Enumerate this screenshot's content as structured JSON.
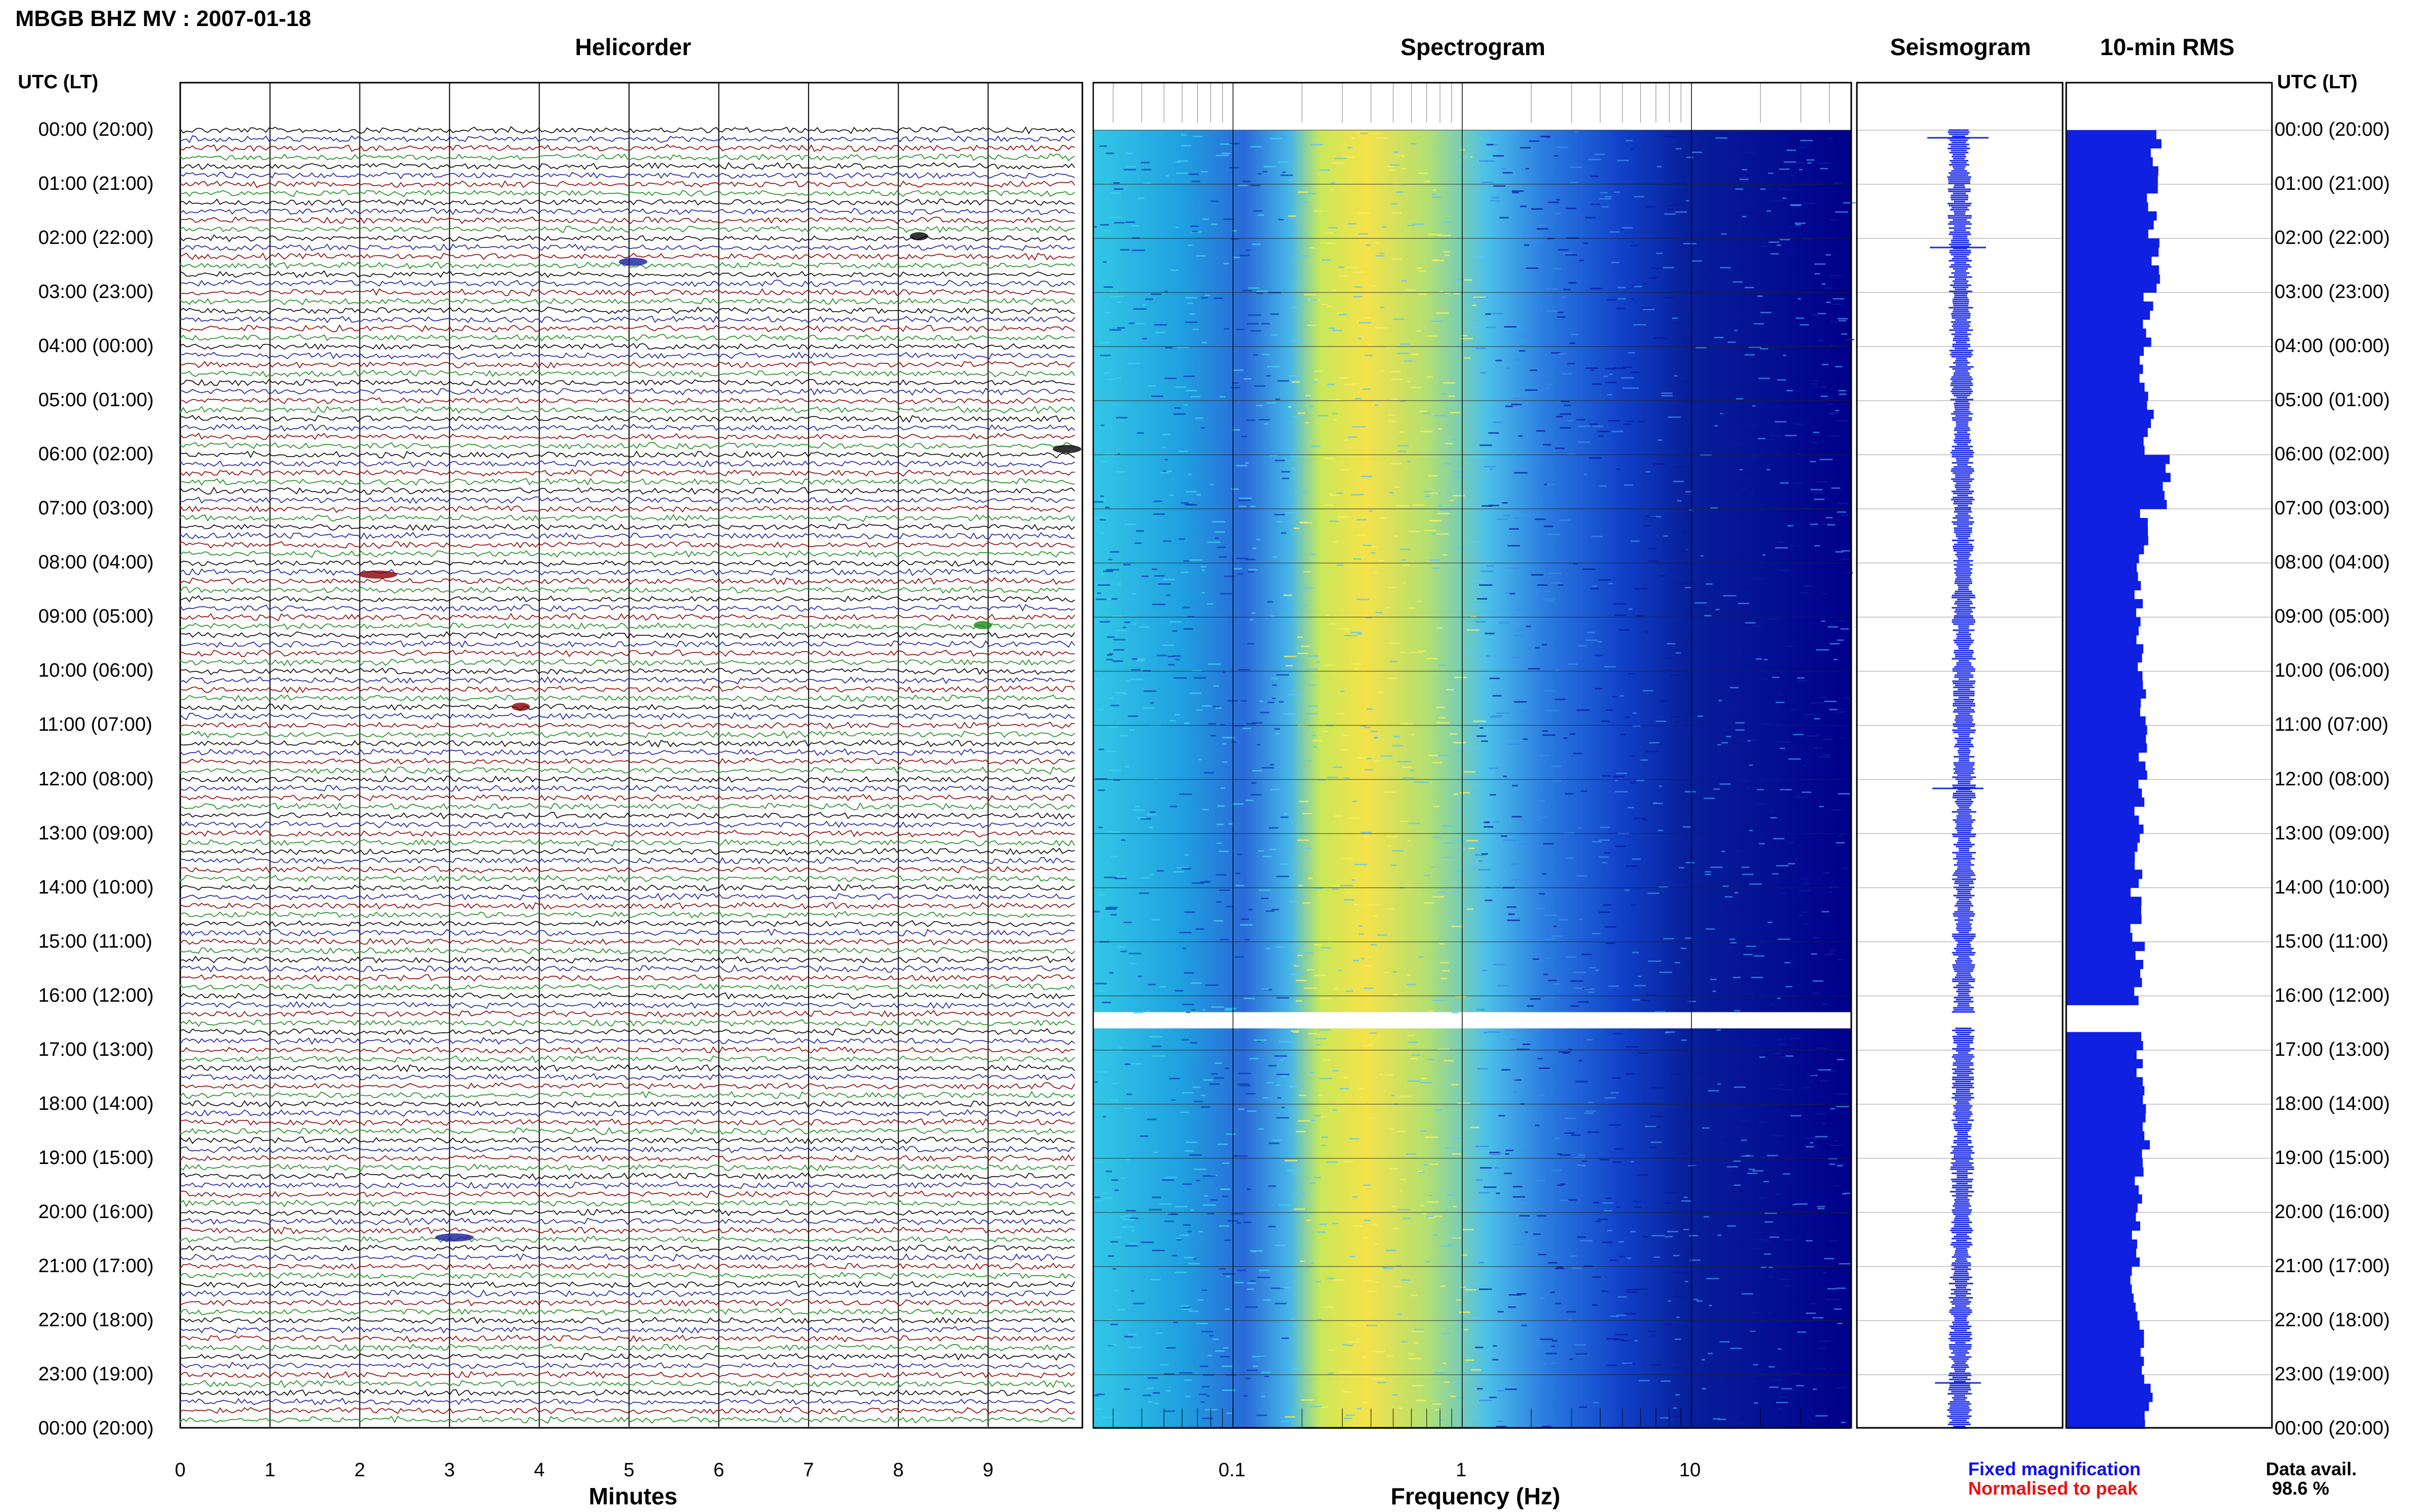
{
  "title": "MBGB BHZ MV : 2007-01-18",
  "panels": {
    "helicorder": "Helicorder",
    "spectrogram": "Spectrogram",
    "seismogram": "Seismogram",
    "rms": "10-min RMS"
  },
  "utc_header": "UTC (LT)",
  "time_labels": [
    "00:00 (20:00)",
    "01:00 (21:00)",
    "02:00 (22:00)",
    "03:00 (23:00)",
    "04:00 (00:00)",
    "05:00 (01:00)",
    "06:00 (02:00)",
    "07:00 (03:00)",
    "08:00 (04:00)",
    "09:00 (05:00)",
    "10:00 (06:00)",
    "11:00 (07:00)",
    "12:00 (08:00)",
    "13:00 (09:00)",
    "14:00 (10:00)",
    "15:00 (11:00)",
    "16:00 (12:00)",
    "17:00 (13:00)",
    "18:00 (14:00)",
    "19:00 (15:00)",
    "20:00 (16:00)",
    "21:00 (17:00)",
    "22:00 (18:00)",
    "23:00 (19:00)",
    "00:00 (20:00)"
  ],
  "x_axis": {
    "minutes_label": "Minutes",
    "minutes_ticks": [
      "0",
      "1",
      "2",
      "3",
      "4",
      "5",
      "6",
      "7",
      "8",
      "9"
    ],
    "frequency_label": "Frequency (Hz)",
    "frequency_ticks": [
      "0.1",
      "1",
      "10"
    ]
  },
  "legend": {
    "fixed": "Fixed magnification",
    "normalised": "Normalised to peak",
    "fixed_color": "#1010ee",
    "normalised_color": "#ee1010"
  },
  "data_avail": {
    "label": "Data avail.",
    "value": "98.6 %"
  },
  "colors": {
    "trace_cycle": [
      "#000000",
      "#1a1aa0",
      "#8b0000",
      "#1a8a1a"
    ],
    "spectro_low": "#00008b",
    "spectro_mid": "#19c6e6",
    "spectro_high": "#f5e84a",
    "bar_color": "#1020e0"
  },
  "chart_data": {
    "type": "heatmap",
    "gap_hours": [
      16.3,
      16.6
    ],
    "rms_hourly": [
      1.1,
      1.05,
      1.1,
      1.0,
      0.95,
      1.0,
      1.2,
      0.95,
      0.9,
      0.9,
      0.95,
      0.95,
      0.9,
      0.9,
      0.85,
      0.9,
      0.95,
      0.9,
      0.95,
      0.9,
      0.85,
      0.85,
      0.9,
      1.0
    ]
  }
}
